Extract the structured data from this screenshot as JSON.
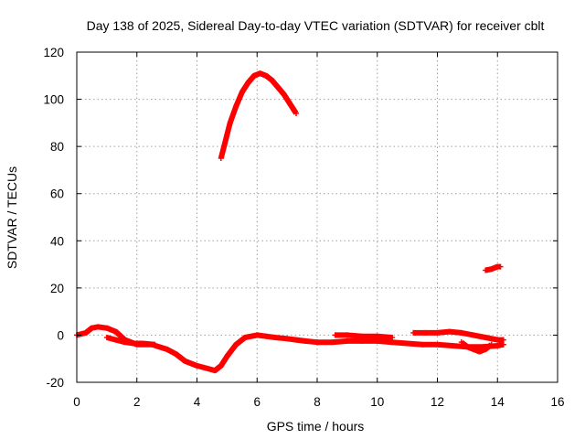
{
  "chart_data": {
    "type": "line",
    "title": "Day 138 of 2025, Sidereal Day-to-day VTEC variation (SDTVAR) for receiver cblt",
    "xlabel": "GPS time / hours",
    "ylabel": "SDTVAR / TECUs",
    "xlim": [
      0,
      16
    ],
    "ylim": [
      -20,
      120
    ],
    "xticks": [
      0,
      2,
      4,
      6,
      8,
      10,
      12,
      14,
      16
    ],
    "yticks": [
      -20,
      0,
      20,
      40,
      60,
      80,
      100,
      120
    ],
    "xtick_labels": [
      "0",
      "2",
      "4",
      "6",
      "8",
      "10",
      "12",
      "14",
      "16"
    ],
    "ytick_labels": [
      "-20",
      "0",
      "20",
      "40",
      "60",
      "80",
      "100",
      "120"
    ],
    "grid": true,
    "color": "#ff0000",
    "series": [
      {
        "name": "sdtvar-main",
        "x": [
          0,
          0.3,
          0.5,
          0.7,
          1.0,
          1.3,
          1.6,
          2.0,
          2.5,
          3.0,
          3.3,
          3.6,
          4.0,
          4.3,
          4.6,
          4.8,
          5.0,
          5.3,
          5.6,
          6.0,
          6.3,
          6.6,
          7.0,
          7.3,
          7.6,
          8.0,
          8.5,
          9.0,
          9.5,
          10.0,
          10.5,
          11.0,
          11.5,
          12.0,
          12.5,
          13.0,
          13.5,
          14.0,
          14.2
        ],
        "y": [
          0,
          1,
          3,
          3.5,
          3,
          1.5,
          -2,
          -4,
          -4,
          -6,
          -8,
          -11,
          -13,
          -14,
          -15,
          -13,
          -9,
          -4,
          -1,
          0,
          -0.5,
          -1,
          -1.5,
          -2,
          -2.5,
          -3,
          -3,
          -2.5,
          -2.5,
          -2.5,
          -3,
          -3.5,
          -4,
          -4,
          -4.5,
          -5,
          -5,
          -4.5,
          -4
        ]
      },
      {
        "name": "sdtvar-offset-segment",
        "x": [
          1.0,
          1.3,
          1.6,
          1.9,
          2.2,
          2.6
        ],
        "y": [
          -1,
          -2,
          -3,
          -3.5,
          -3.5,
          -4
        ]
      },
      {
        "name": "sdtvar-pulse",
        "x": [
          4.8,
          4.9,
          5.0,
          5.1,
          5.3,
          5.5,
          5.7,
          5.9,
          6.1,
          6.3,
          6.5,
          6.7,
          6.9,
          7.1,
          7.3
        ],
        "y": [
          75,
          80,
          85,
          90,
          97,
          103,
          107,
          110,
          111,
          110,
          108,
          105,
          102,
          98,
          94
        ]
      },
      {
        "name": "sdtvar-upper-band",
        "x": [
          8.6,
          9.0,
          9.5,
          10.0,
          10.5
        ],
        "y": [
          0,
          0,
          -0.5,
          -0.5,
          -1
        ]
      },
      {
        "name": "sdtvar-band-b",
        "x": [
          11.2,
          11.6,
          12.0,
          12.4,
          12.8,
          13.2,
          13.6,
          14.0,
          14.2
        ],
        "y": [
          1,
          1,
          1,
          1.5,
          1,
          0,
          -1,
          -2,
          -2
        ]
      },
      {
        "name": "sdtvar-band-c",
        "x": [
          12.8,
          13.0,
          13.2,
          13.4,
          13.6,
          13.8
        ],
        "y": [
          -3,
          -5,
          -6,
          -7,
          -6,
          -4
        ]
      },
      {
        "name": "sdtvar-late-segment",
        "x": [
          13.6,
          13.8,
          14.0,
          14.1
        ],
        "y": [
          27.5,
          28,
          29,
          29
        ]
      }
    ]
  }
}
